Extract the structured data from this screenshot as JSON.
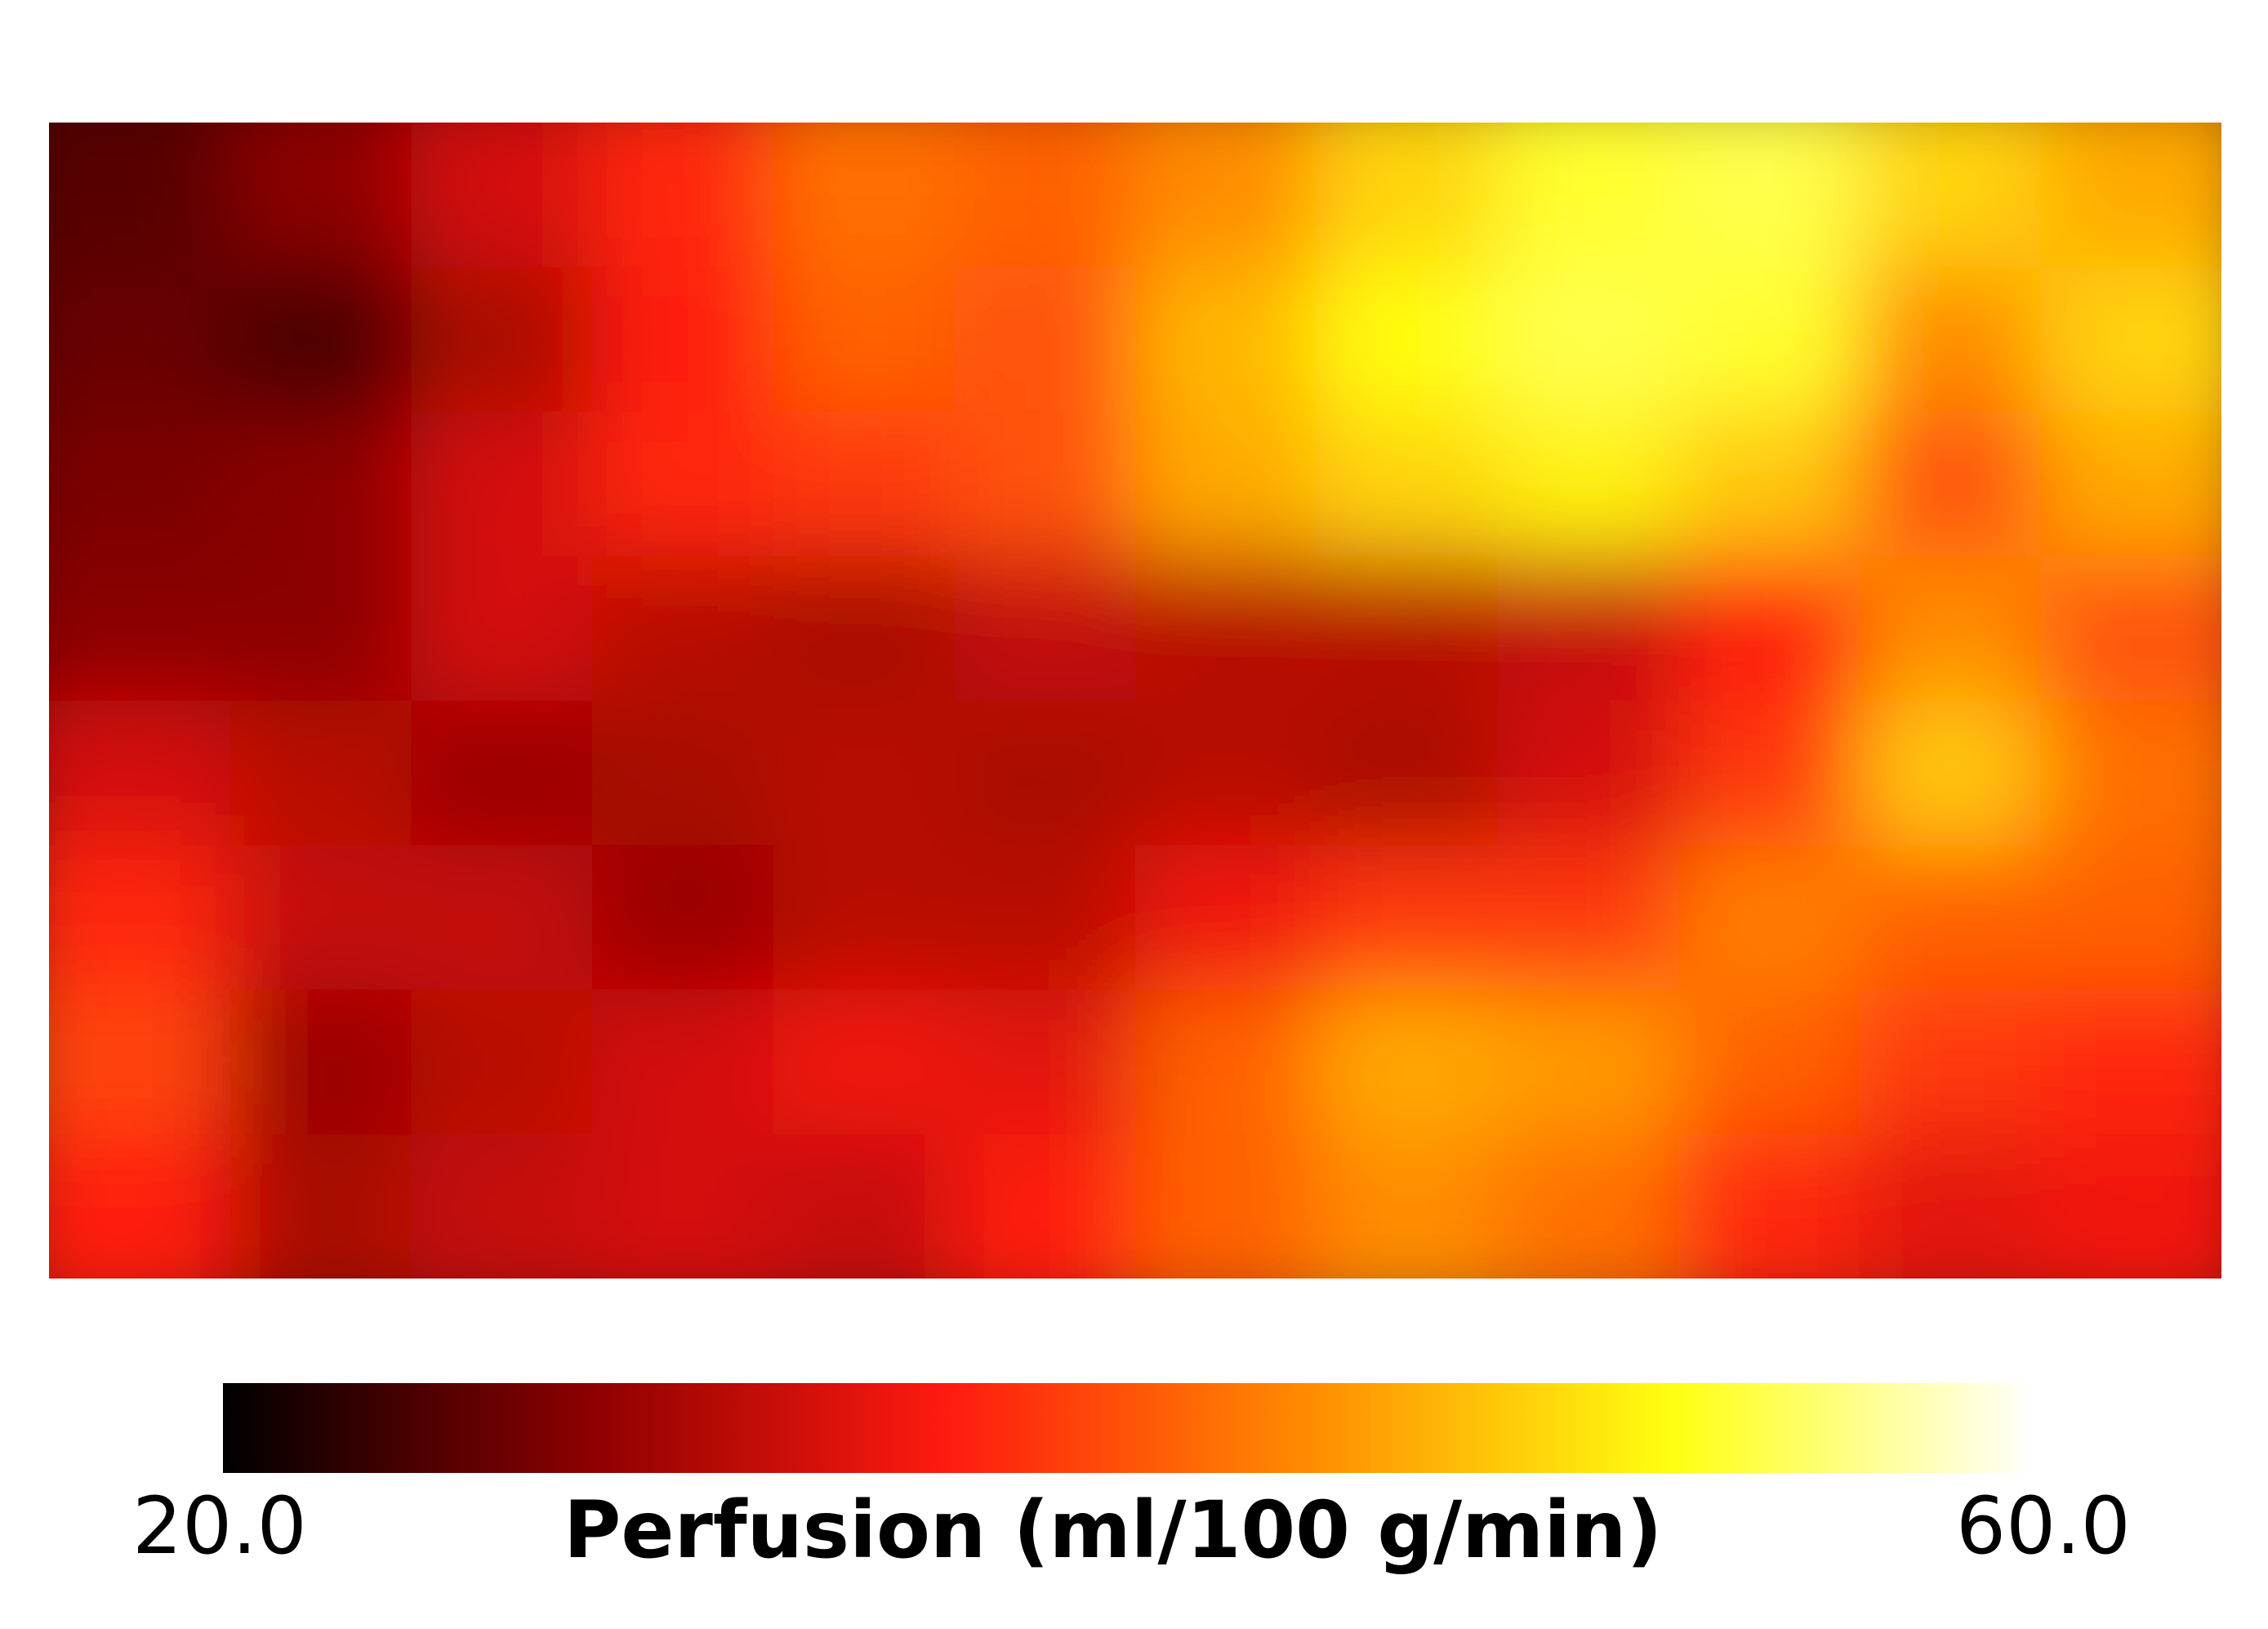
{
  "chart_data": {
    "type": "heatmap",
    "colorbar": {
      "label": "Perfusion (ml/100 g/min)",
      "min_label": "20.0",
      "max_label": "60.0",
      "vmin": 20.0,
      "vmax": 60.0,
      "colormap": "hot",
      "stops": [
        "#000000",
        "#8b0000",
        "#ff1a10",
        "#ff8c00",
        "#ffff10",
        "#ffffff"
      ]
    },
    "values": [
      [
        25,
        28,
        33,
        37,
        42,
        41,
        44,
        49,
        53,
        54,
        49,
        46
      ],
      [
        26,
        24,
        30,
        36,
        41,
        40,
        47,
        52,
        54,
        53,
        44,
        49
      ],
      [
        27,
        28,
        33,
        37,
        38,
        40,
        46,
        49,
        51,
        48,
        40,
        46
      ],
      [
        28,
        28,
        33,
        31,
        30,
        32,
        31,
        31,
        32,
        36,
        44,
        40
      ],
      [
        33,
        31,
        29,
        30,
        31,
        30,
        31,
        30,
        33,
        38,
        48,
        42
      ],
      [
        37,
        32,
        32,
        29,
        31,
        31,
        35,
        38,
        38,
        43,
        41,
        41
      ],
      [
        39,
        29,
        31,
        33,
        35,
        34,
        41,
        46,
        45,
        41,
        38,
        37
      ],
      [
        36,
        30,
        32,
        33,
        32,
        36,
        41,
        44,
        42,
        37,
        34,
        35
      ]
    ]
  }
}
